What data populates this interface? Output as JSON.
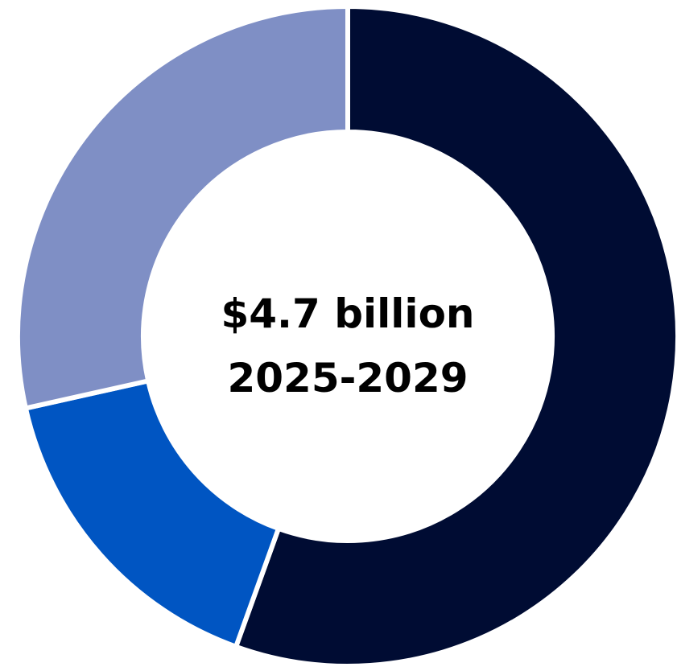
{
  "chart_data": {
    "type": "pie",
    "variant": "donut",
    "title": "",
    "center_text": {
      "line1": "$4.7 billion",
      "line2": "2025-2029"
    },
    "slices": [
      {
        "value": 0.555,
        "color": "#000c33"
      },
      {
        "value": 0.16,
        "color": "#0055c2"
      },
      {
        "value": 0.285,
        "color": "#7f8fc5"
      }
    ],
    "start_angle_deg": 0,
    "direction": "clockwise",
    "separator_color": "#ffffff",
    "legend": "none"
  }
}
